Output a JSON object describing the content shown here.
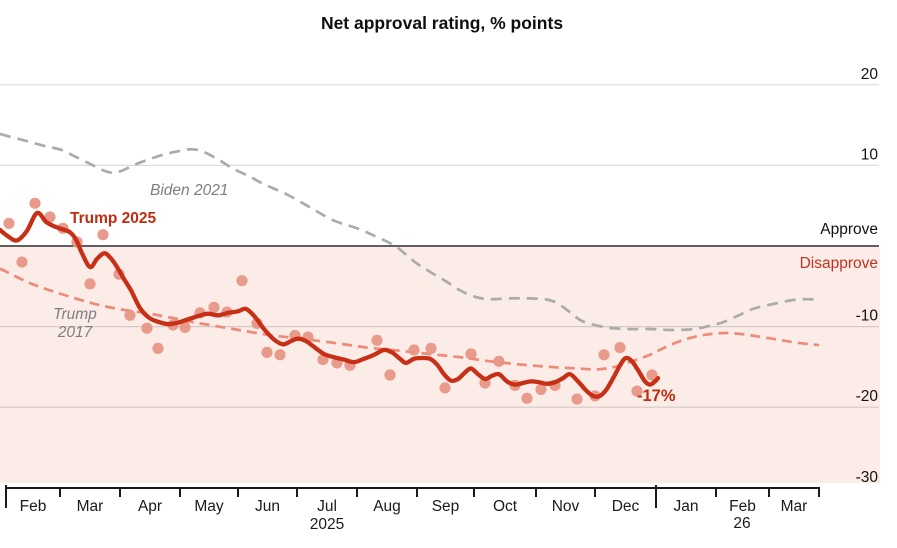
{
  "page": {
    "background": "#ffffff"
  },
  "chart_data": {
    "type": "line",
    "title": "Net approval rating, % points",
    "y_axis": {
      "unit": "% points",
      "tick_values": [
        20,
        10,
        -10,
        -20,
        -30
      ],
      "tick_labels": [
        "20",
        "10",
        "-10",
        "-20",
        "-30"
      ],
      "range": [
        -30,
        25
      ],
      "grid": true,
      "zero_line": true
    },
    "x_axis": {
      "months": [
        "Feb",
        "Mar",
        "Apr",
        "May",
        "Jun",
        "Jul",
        "Aug",
        "Sep",
        "Oct",
        "Nov",
        "Dec",
        "Jan",
        "Feb",
        "Mar"
      ],
      "year_2025_label": "2025",
      "year_2026_label": "26"
    },
    "zone_labels": {
      "approve": "Approve",
      "disapprove": "Disapprove"
    },
    "series_labels": {
      "biden": "Biden 2021",
      "trump2025": "Trump 2025",
      "trump2017": "Trump\n2017"
    },
    "annotation": {
      "final_value_label": "-17%"
    },
    "colors": {
      "trump2025_line": "#c72f16",
      "label_red": "#c02c12",
      "poll_dot": "#e69282",
      "trump2017_dash": "#ee8a7a",
      "biden_dash": "#ababab",
      "disapprove_band": "#fcece8",
      "grid": "#dcdcdc",
      "grid_on_pink": "#d4c9c6",
      "axis": "#1a1a1a",
      "text": "#121212",
      "muted": "#7e7e7e"
    },
    "x_unit_note": "x = horizontal position (time, Feb 2025 - Apr 2026); y = net approval, % points",
    "series": [
      {
        "name": "Biden 2021",
        "type": "line",
        "style": "dashed",
        "color": "#ababab",
        "points": [
          [
            0,
            13.9
          ],
          [
            15,
            13.4
          ],
          [
            30,
            12.9
          ],
          [
            45,
            12.4
          ],
          [
            62,
            11.9
          ],
          [
            75,
            11.1
          ],
          [
            90,
            10.2
          ],
          [
            103,
            9.4
          ],
          [
            112,
            9.1
          ],
          [
            121,
            9.3
          ],
          [
            135,
            10.1
          ],
          [
            150,
            10.8
          ],
          [
            165,
            11.4
          ],
          [
            180,
            11.8
          ],
          [
            193,
            12.0
          ],
          [
            205,
            11.6
          ],
          [
            220,
            10.6
          ],
          [
            233,
            9.6
          ],
          [
            250,
            8.6
          ],
          [
            265,
            7.6
          ],
          [
            287,
            6.4
          ],
          [
            310,
            4.8
          ],
          [
            333,
            3.2
          ],
          [
            357,
            2.2
          ],
          [
            372,
            1.4
          ],
          [
            395,
            0.0
          ],
          [
            415,
            -2.0
          ],
          [
            430,
            -3.2
          ],
          [
            445,
            -4.3
          ],
          [
            460,
            -5.5
          ],
          [
            475,
            -6.3
          ],
          [
            490,
            -6.6
          ],
          [
            510,
            -6.5
          ],
          [
            530,
            -6.5
          ],
          [
            552,
            -6.8
          ],
          [
            570,
            -8.2
          ],
          [
            582,
            -9.3
          ],
          [
            606,
            -10.1
          ],
          [
            628,
            -10.3
          ],
          [
            650,
            -10.3
          ],
          [
            665,
            -10.4
          ],
          [
            680,
            -10.4
          ],
          [
            695,
            -10.3
          ],
          [
            710,
            -9.9
          ],
          [
            722,
            -9.5
          ],
          [
            737,
            -8.7
          ],
          [
            753,
            -7.8
          ],
          [
            773,
            -7.2
          ],
          [
            793,
            -6.7
          ],
          [
            808,
            -6.6
          ],
          [
            820,
            -6.7
          ]
        ]
      },
      {
        "name": "Trump 2017",
        "type": "line",
        "style": "dashed",
        "color": "#ee8a7a",
        "points": [
          [
            0,
            -2.8
          ],
          [
            30,
            -4.6
          ],
          [
            60,
            -5.9
          ],
          [
            95,
            -7.2
          ],
          [
            123,
            -7.9
          ],
          [
            150,
            -8.4
          ],
          [
            175,
            -9.0
          ],
          [
            200,
            -9.6
          ],
          [
            233,
            -10.3
          ],
          [
            267,
            -11.0
          ],
          [
            300,
            -11.5
          ],
          [
            333,
            -12.0
          ],
          [
            367,
            -12.6
          ],
          [
            400,
            -13.0
          ],
          [
            430,
            -13.4
          ],
          [
            460,
            -13.8
          ],
          [
            490,
            -14.3
          ],
          [
            520,
            -14.7
          ],
          [
            550,
            -15.0
          ],
          [
            578,
            -15.2
          ],
          [
            598,
            -15.3
          ],
          [
            615,
            -15.0
          ],
          [
            632,
            -14.3
          ],
          [
            650,
            -13.5
          ],
          [
            663,
            -12.7
          ],
          [
            680,
            -11.8
          ],
          [
            697,
            -11.2
          ],
          [
            712,
            -10.9
          ],
          [
            725,
            -10.8
          ],
          [
            740,
            -10.9
          ],
          [
            757,
            -11.2
          ],
          [
            777,
            -11.6
          ],
          [
            797,
            -12.0
          ],
          [
            819,
            -12.3
          ]
        ]
      },
      {
        "name": "Trump 2025 weekly polls",
        "type": "scatter",
        "color": "#e69282",
        "points": [
          [
            9,
            2.8
          ],
          [
            22,
            -2.0
          ],
          [
            35,
            5.3
          ],
          [
            50,
            3.6
          ],
          [
            63,
            2.2
          ],
          [
            77,
            0.5
          ],
          [
            90,
            -4.7
          ],
          [
            103,
            1.4
          ],
          [
            119,
            -3.5
          ],
          [
            130,
            -8.6
          ],
          [
            147,
            -10.2
          ],
          [
            158,
            -12.7
          ],
          [
            173,
            -9.8
          ],
          [
            185,
            -10.1
          ],
          [
            200,
            -8.3
          ],
          [
            214,
            -7.6
          ],
          [
            227,
            -8.2
          ],
          [
            242,
            -4.3
          ],
          [
            257,
            -9.6
          ],
          [
            267,
            -13.2
          ],
          [
            280,
            -13.5
          ],
          [
            295,
            -11.1
          ],
          [
            308,
            -11.3
          ],
          [
            323,
            -14.1
          ],
          [
            337,
            -14.5
          ],
          [
            350,
            -14.8
          ],
          [
            377,
            -11.7
          ],
          [
            390,
            -16.0
          ],
          [
            414,
            -12.9
          ],
          [
            431,
            -12.7
          ],
          [
            445,
            -17.6
          ],
          [
            471,
            -13.4
          ],
          [
            485,
            -17.0
          ],
          [
            499,
            -14.3
          ],
          [
            515,
            -17.3
          ],
          [
            527,
            -18.9
          ],
          [
            541,
            -17.8
          ],
          [
            555,
            -17.3
          ],
          [
            577,
            -19.0
          ],
          [
            595,
            -18.6
          ],
          [
            604,
            -13.5
          ],
          [
            620,
            -12.6
          ],
          [
            637,
            -18.0
          ],
          [
            652,
            -16.0
          ]
        ]
      },
      {
        "name": "Trump 2025",
        "type": "line",
        "style": "solid",
        "color": "#c72f16",
        "points": [
          [
            0,
            2.0
          ],
          [
            8,
            1.2
          ],
          [
            17,
            0.7
          ],
          [
            27,
            1.9
          ],
          [
            37,
            4.1
          ],
          [
            46,
            3.0
          ],
          [
            53,
            2.5
          ],
          [
            62,
            2.1
          ],
          [
            70,
            1.7
          ],
          [
            76,
            0.8
          ],
          [
            82,
            -0.9
          ],
          [
            90,
            -2.6
          ],
          [
            97,
            -1.6
          ],
          [
            104,
            -0.9
          ],
          [
            110,
            -1.4
          ],
          [
            117,
            -2.6
          ],
          [
            124,
            -4.1
          ],
          [
            131,
            -5.5
          ],
          [
            140,
            -7.7
          ],
          [
            149,
            -8.9
          ],
          [
            158,
            -9.4
          ],
          [
            168,
            -9.7
          ],
          [
            178,
            -9.5
          ],
          [
            188,
            -9.1
          ],
          [
            198,
            -8.7
          ],
          [
            208,
            -8.4
          ],
          [
            218,
            -8.6
          ],
          [
            228,
            -8.3
          ],
          [
            238,
            -8.1
          ],
          [
            246,
            -7.8
          ],
          [
            255,
            -8.8
          ],
          [
            264,
            -10.3
          ],
          [
            274,
            -11.6
          ],
          [
            283,
            -12.2
          ],
          [
            291,
            -11.8
          ],
          [
            298,
            -11.5
          ],
          [
            306,
            -11.8
          ],
          [
            315,
            -12.6
          ],
          [
            324,
            -13.4
          ],
          [
            334,
            -13.8
          ],
          [
            344,
            -14.1
          ],
          [
            354,
            -14.4
          ],
          [
            364,
            -14.0
          ],
          [
            374,
            -13.5
          ],
          [
            384,
            -12.9
          ],
          [
            392,
            -13.2
          ],
          [
            400,
            -14.0
          ],
          [
            406,
            -14.5
          ],
          [
            414,
            -14.0
          ],
          [
            422,
            -13.9
          ],
          [
            430,
            -14.0
          ],
          [
            437,
            -14.7
          ],
          [
            444,
            -15.9
          ],
          [
            451,
            -16.7
          ],
          [
            458,
            -16.5
          ],
          [
            465,
            -15.7
          ],
          [
            471,
            -15.2
          ],
          [
            478,
            -15.9
          ],
          [
            485,
            -16.5
          ],
          [
            492,
            -16.1
          ],
          [
            499,
            -15.9
          ],
          [
            507,
            -16.8
          ],
          [
            515,
            -17.2
          ],
          [
            523,
            -17.0
          ],
          [
            531,
            -16.8
          ],
          [
            539,
            -16.9
          ],
          [
            547,
            -17.1
          ],
          [
            555,
            -16.9
          ],
          [
            563,
            -16.4
          ],
          [
            570,
            -15.9
          ],
          [
            578,
            -16.8
          ],
          [
            586,
            -17.9
          ],
          [
            593,
            -18.6
          ],
          [
            600,
            -18.6
          ],
          [
            607,
            -17.7
          ],
          [
            614,
            -16.2
          ],
          [
            621,
            -14.6
          ],
          [
            626,
            -13.9
          ],
          [
            632,
            -14.3
          ],
          [
            638,
            -15.4
          ],
          [
            645,
            -16.8
          ],
          [
            650,
            -17.2
          ],
          [
            655,
            -16.8
          ],
          [
            658,
            -16.4
          ]
        ]
      }
    ]
  }
}
